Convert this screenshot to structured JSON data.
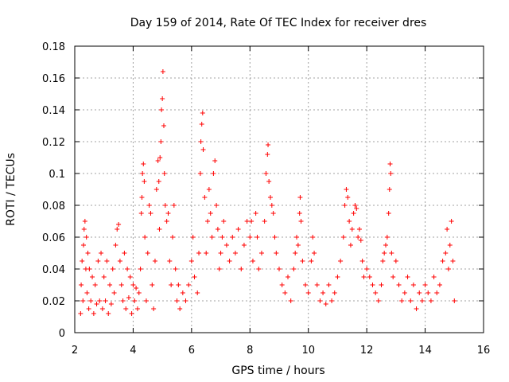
{
  "chart_data": {
    "type": "scatter",
    "title": "Day 159 of 2014, Rate Of TEC Index for receiver dres",
    "xlabel": "GPS time / hours",
    "ylabel": "ROTI / TECUs",
    "xlim": [
      2,
      16
    ],
    "ylim": [
      0,
      0.18
    ],
    "xticks": [
      2,
      4,
      6,
      8,
      10,
      12,
      14,
      16
    ],
    "xtick_labels": [
      "2",
      "4",
      "6",
      "8",
      "10",
      "12",
      "14",
      "16"
    ],
    "yticks": [
      0,
      0.02,
      0.04,
      0.06,
      0.08,
      0.1,
      0.12,
      0.14,
      0.16,
      0.18
    ],
    "ytick_labels": [
      "0",
      "0.02",
      "0.04",
      "0.06",
      "0.08",
      "0.1",
      "0.12",
      "0.14",
      "0.16",
      "0.18"
    ],
    "grid": true,
    "marker": "+",
    "color": "#ff0000",
    "series": [
      {
        "name": "ROTI",
        "points": [
          [
            2.2,
            0.012
          ],
          [
            2.22,
            0.03
          ],
          [
            2.25,
            0.045
          ],
          [
            2.28,
            0.02
          ],
          [
            2.3,
            0.055
          ],
          [
            2.32,
            0.065
          ],
          [
            2.35,
            0.07
          ],
          [
            2.38,
            0.04
          ],
          [
            2.4,
            0.06
          ],
          [
            2.42,
            0.025
          ],
          [
            2.45,
            0.05
          ],
          [
            2.48,
            0.015
          ],
          [
            2.5,
            0.04
          ],
          [
            2.55,
            0.02
          ],
          [
            2.6,
            0.035
          ],
          [
            2.65,
            0.012
          ],
          [
            2.7,
            0.03
          ],
          [
            2.75,
            0.018
          ],
          [
            2.8,
            0.045
          ],
          [
            2.85,
            0.02
          ],
          [
            2.9,
            0.05
          ],
          [
            2.95,
            0.015
          ],
          [
            3.0,
            0.035
          ],
          [
            3.05,
            0.02
          ],
          [
            3.1,
            0.045
          ],
          [
            3.15,
            0.012
          ],
          [
            3.2,
            0.03
          ],
          [
            3.25,
            0.018
          ],
          [
            3.3,
            0.04
          ],
          [
            3.35,
            0.025
          ],
          [
            3.4,
            0.055
          ],
          [
            3.45,
            0.065
          ],
          [
            3.5,
            0.068
          ],
          [
            3.55,
            0.045
          ],
          [
            3.6,
            0.03
          ],
          [
            3.65,
            0.02
          ],
          [
            3.7,
            0.05
          ],
          [
            3.75,
            0.015
          ],
          [
            3.8,
            0.04
          ],
          [
            3.85,
            0.022
          ],
          [
            3.9,
            0.035
          ],
          [
            3.95,
            0.012
          ],
          [
            4.0,
            0.03
          ],
          [
            4.05,
            0.02
          ],
          [
            4.1,
            0.028
          ],
          [
            4.15,
            0.015
          ],
          [
            4.2,
            0.025
          ],
          [
            4.25,
            0.04
          ],
          [
            4.28,
            0.075
          ],
          [
            4.3,
            0.085
          ],
          [
            4.32,
            0.1
          ],
          [
            4.35,
            0.106
          ],
          [
            4.38,
            0.095
          ],
          [
            4.4,
            0.06
          ],
          [
            4.45,
            0.02
          ],
          [
            4.5,
            0.05
          ],
          [
            4.55,
            0.08
          ],
          [
            4.6,
            0.075
          ],
          [
            4.65,
            0.03
          ],
          [
            4.7,
            0.015
          ],
          [
            4.75,
            0.045
          ],
          [
            4.8,
            0.09
          ],
          [
            4.85,
            0.108
          ],
          [
            4.88,
            0.095
          ],
          [
            4.9,
            0.065
          ],
          [
            4.92,
            0.11
          ],
          [
            4.95,
            0.12
          ],
          [
            4.97,
            0.14
          ],
          [
            5.0,
            0.147
          ],
          [
            5.02,
            0.164
          ],
          [
            5.05,
            0.13
          ],
          [
            5.07,
            0.1
          ],
          [
            5.1,
            0.08
          ],
          [
            5.15,
            0.07
          ],
          [
            5.2,
            0.075
          ],
          [
            5.25,
            0.045
          ],
          [
            5.3,
            0.03
          ],
          [
            5.35,
            0.06
          ],
          [
            5.4,
            0.08
          ],
          [
            5.45,
            0.04
          ],
          [
            5.5,
            0.02
          ],
          [
            5.55,
            0.03
          ],
          [
            5.6,
            0.015
          ],
          [
            5.7,
            0.025
          ],
          [
            5.8,
            0.02
          ],
          [
            5.9,
            0.03
          ],
          [
            6.0,
            0.045
          ],
          [
            6.05,
            0.06
          ],
          [
            6.1,
            0.035
          ],
          [
            6.2,
            0.025
          ],
          [
            6.25,
            0.05
          ],
          [
            6.3,
            0.1
          ],
          [
            6.32,
            0.12
          ],
          [
            6.35,
            0.131
          ],
          [
            6.38,
            0.138
          ],
          [
            6.4,
            0.115
          ],
          [
            6.45,
            0.085
          ],
          [
            6.5,
            0.05
          ],
          [
            6.55,
            0.07
          ],
          [
            6.6,
            0.09
          ],
          [
            6.65,
            0.075
          ],
          [
            6.7,
            0.06
          ],
          [
            6.75,
            0.1
          ],
          [
            6.8,
            0.108
          ],
          [
            6.85,
            0.08
          ],
          [
            6.9,
            0.065
          ],
          [
            6.95,
            0.04
          ],
          [
            7.0,
            0.05
          ],
          [
            7.05,
            0.06
          ],
          [
            7.1,
            0.07
          ],
          [
            7.2,
            0.055
          ],
          [
            7.3,
            0.045
          ],
          [
            7.4,
            0.06
          ],
          [
            7.5,
            0.05
          ],
          [
            7.6,
            0.065
          ],
          [
            7.7,
            0.04
          ],
          [
            7.8,
            0.055
          ],
          [
            7.9,
            0.07
          ],
          [
            8.0,
            0.06
          ],
          [
            8.05,
            0.07
          ],
          [
            8.1,
            0.045
          ],
          [
            8.2,
            0.075
          ],
          [
            8.25,
            0.06
          ],
          [
            8.3,
            0.04
          ],
          [
            8.4,
            0.05
          ],
          [
            8.5,
            0.07
          ],
          [
            8.55,
            0.1
          ],
          [
            8.6,
            0.112
          ],
          [
            8.62,
            0.118
          ],
          [
            8.65,
            0.095
          ],
          [
            8.7,
            0.085
          ],
          [
            8.75,
            0.08
          ],
          [
            8.8,
            0.075
          ],
          [
            8.85,
            0.06
          ],
          [
            8.9,
            0.05
          ],
          [
            9.0,
            0.04
          ],
          [
            9.1,
            0.03
          ],
          [
            9.2,
            0.025
          ],
          [
            9.3,
            0.035
          ],
          [
            9.4,
            0.02
          ],
          [
            9.5,
            0.04
          ],
          [
            9.55,
            0.05
          ],
          [
            9.6,
            0.06
          ],
          [
            9.65,
            0.055
          ],
          [
            9.7,
            0.075
          ],
          [
            9.72,
            0.085
          ],
          [
            9.75,
            0.07
          ],
          [
            9.8,
            0.045
          ],
          [
            9.9,
            0.03
          ],
          [
            10.0,
            0.025
          ],
          [
            10.1,
            0.045
          ],
          [
            10.15,
            0.06
          ],
          [
            10.2,
            0.05
          ],
          [
            10.3,
            0.03
          ],
          [
            10.4,
            0.02
          ],
          [
            10.5,
            0.025
          ],
          [
            10.6,
            0.018
          ],
          [
            10.7,
            0.03
          ],
          [
            10.8,
            0.02
          ],
          [
            10.9,
            0.025
          ],
          [
            11.0,
            0.035
          ],
          [
            11.1,
            0.045
          ],
          [
            11.2,
            0.06
          ],
          [
            11.25,
            0.08
          ],
          [
            11.3,
            0.09
          ],
          [
            11.35,
            0.085
          ],
          [
            11.4,
            0.07
          ],
          [
            11.45,
            0.055
          ],
          [
            11.5,
            0.065
          ],
          [
            11.55,
            0.075
          ],
          [
            11.6,
            0.08
          ],
          [
            11.65,
            0.078
          ],
          [
            11.7,
            0.06
          ],
          [
            11.75,
            0.065
          ],
          [
            11.8,
            0.058
          ],
          [
            11.85,
            0.045
          ],
          [
            11.9,
            0.035
          ],
          [
            12.0,
            0.04
          ],
          [
            12.1,
            0.035
          ],
          [
            12.2,
            0.03
          ],
          [
            12.3,
            0.025
          ],
          [
            12.4,
            0.02
          ],
          [
            12.5,
            0.03
          ],
          [
            12.55,
            0.045
          ],
          [
            12.6,
            0.05
          ],
          [
            12.65,
            0.055
          ],
          [
            12.7,
            0.06
          ],
          [
            12.75,
            0.075
          ],
          [
            12.78,
            0.09
          ],
          [
            12.8,
            0.106
          ],
          [
            12.82,
            0.1
          ],
          [
            12.85,
            0.05
          ],
          [
            12.9,
            0.035
          ],
          [
            13.0,
            0.045
          ],
          [
            13.1,
            0.03
          ],
          [
            13.2,
            0.02
          ],
          [
            13.3,
            0.025
          ],
          [
            13.4,
            0.035
          ],
          [
            13.5,
            0.02
          ],
          [
            13.6,
            0.03
          ],
          [
            13.7,
            0.015
          ],
          [
            13.8,
            0.025
          ],
          [
            13.9,
            0.02
          ],
          [
            14.0,
            0.03
          ],
          [
            14.1,
            0.025
          ],
          [
            14.2,
            0.02
          ],
          [
            14.3,
            0.035
          ],
          [
            14.4,
            0.025
          ],
          [
            14.5,
            0.03
          ],
          [
            14.6,
            0.045
          ],
          [
            14.7,
            0.05
          ],
          [
            14.75,
            0.065
          ],
          [
            14.8,
            0.04
          ],
          [
            14.85,
            0.055
          ],
          [
            14.9,
            0.07
          ],
          [
            14.95,
            0.045
          ],
          [
            15.0,
            0.02
          ]
        ]
      }
    ]
  }
}
